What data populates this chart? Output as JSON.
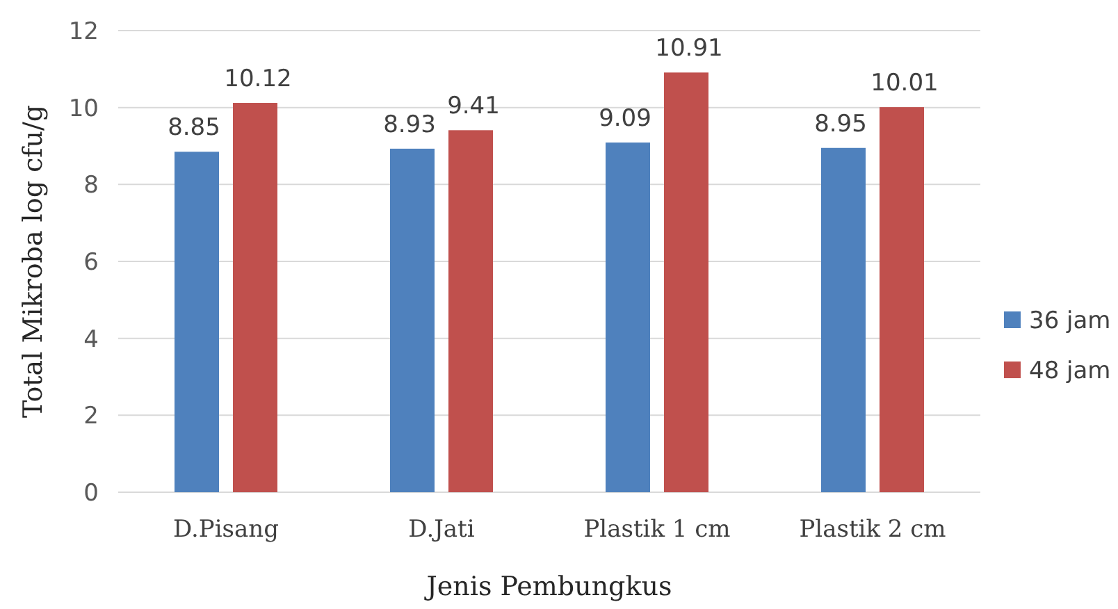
{
  "chart_data": {
    "type": "bar",
    "xlabel": "Jenis Pembungkus",
    "ylabel": "Total Mikroba log cfu/g",
    "categories": [
      "D.Pisang",
      "D.Jati",
      "Plastik 1 cm",
      "Plastik 2 cm"
    ],
    "series": [
      {
        "name": "36 jam",
        "color": "#4f81bd",
        "values": [
          8.85,
          8.93,
          9.09,
          8.95
        ]
      },
      {
        "name": "48 jam",
        "color": "#c0504d",
        "values": [
          10.12,
          9.41,
          10.91,
          10.01
        ]
      }
    ],
    "ylim": [
      0,
      12
    ],
    "yticks": [
      0,
      2,
      4,
      6,
      8,
      10,
      12
    ],
    "grid": "y",
    "legend": "right",
    "data_labels": true
  }
}
